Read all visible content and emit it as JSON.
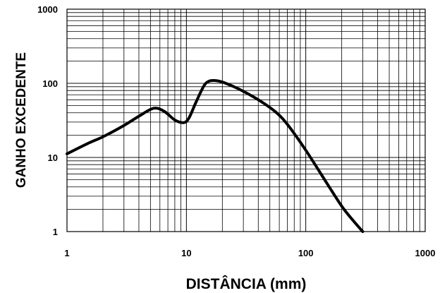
{
  "chart_data": {
    "type": "line",
    "title": "",
    "xlabel": "DISTÂNCIA (mm)",
    "ylabel": "GANHO EXCEDENTE",
    "x_scale": "log",
    "y_scale": "log",
    "xlim": [
      1,
      1000
    ],
    "ylim": [
      1,
      1000
    ],
    "x_ticks": [
      1,
      10,
      100,
      1000
    ],
    "x_tick_labels": [
      "1",
      "10",
      "100",
      "1000"
    ],
    "y_ticks": [
      1,
      10,
      100,
      1000
    ],
    "y_tick_labels": [
      "1",
      "10",
      "100",
      "1000"
    ],
    "grid": true,
    "legend": "none",
    "series": [
      {
        "color": "#000000",
        "x": [
          1,
          1.5,
          2,
          3,
          4,
          5.3,
          6.5,
          8,
          9.5,
          10.5,
          12,
          14,
          15.5,
          17.5,
          20,
          25,
          30,
          40,
          55,
          70,
          100,
          150,
          200,
          250,
          300
        ],
        "y": [
          11.2,
          15.5,
          19,
          27,
          36,
          46,
          42,
          32,
          29.5,
          34,
          55,
          92,
          107,
          109,
          104,
          90,
          78,
          60,
          42,
          28,
          12.5,
          4.5,
          2.2,
          1.4,
          1.0
        ]
      }
    ]
  }
}
